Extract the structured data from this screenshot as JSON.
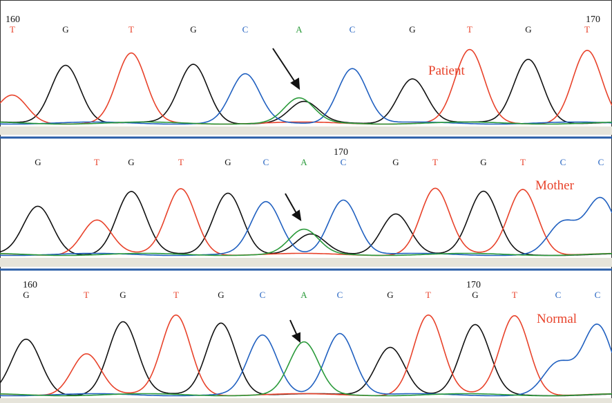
{
  "base_colors": {
    "G": "#111111",
    "T": "#e8422a",
    "C": "#2060c0",
    "A": "#2a9a3a"
  },
  "panels": [
    {
      "label": "Patient",
      "position_labels": [
        160,
        170
      ],
      "bases": [
        "T",
        "G",
        "T",
        "G",
        "C",
        "A",
        "C",
        "G",
        "T",
        "G",
        "T"
      ]
    },
    {
      "label": "Mother",
      "position_labels": [
        170
      ],
      "bases": [
        "G",
        "T",
        "G",
        "T",
        "G",
        "C",
        "A",
        "C",
        "G",
        "T",
        "G",
        "T",
        "C",
        "C"
      ]
    },
    {
      "label": "Normal",
      "position_labels": [
        160,
        170
      ],
      "bases": [
        "G",
        "T",
        "G",
        "T",
        "G",
        "C",
        "A",
        "C",
        "G",
        "T",
        "G",
        "T",
        "C",
        "C"
      ]
    }
  ]
}
